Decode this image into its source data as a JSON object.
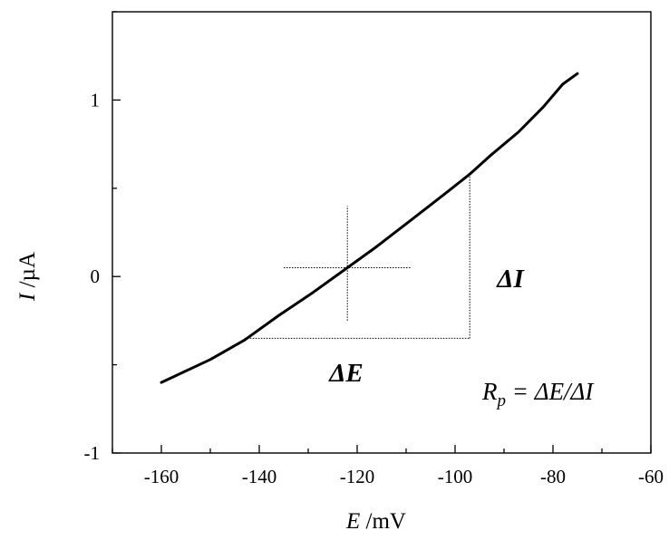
{
  "chart_data": {
    "type": "line",
    "xlabel": {
      "symbol": "E",
      "unit": " /mV"
    },
    "ylabel": {
      "symbol": "I",
      "unit": " /µA"
    },
    "xlim": [
      -170,
      -60
    ],
    "ylim": [
      -1,
      1.5
    ],
    "x_ticks": [
      -160,
      -140,
      -120,
      -100,
      -80,
      -60
    ],
    "y_ticks": [
      -1,
      0,
      1
    ],
    "grid": false,
    "series": [
      {
        "x": [
          -160,
          -150,
          -143,
          -136,
          -129,
          -122,
          -116,
          -109,
          -102,
          -97,
          -93,
          -87,
          -82,
          -78,
          -75
        ],
        "y": [
          -0.6,
          -0.47,
          -0.36,
          -0.22,
          -0.09,
          0.05,
          0.17,
          0.32,
          0.47,
          0.58,
          0.68,
          0.82,
          0.96,
          1.09,
          1.15
        ]
      }
    ],
    "crosshair": {
      "x": -122,
      "y": 0.05,
      "x_range": [
        -135,
        -109
      ],
      "y_range": [
        -0.25,
        0.4
      ]
    },
    "slope_triangle": {
      "x1": -143,
      "y1": -0.35,
      "x2": -97,
      "y2": 0.58
    },
    "annotations": {
      "delta_e": "ΔE",
      "delta_i": "ΔI",
      "formula": {
        "r": "R",
        "sub": "p",
        "rest": " = ΔE/ΔI"
      }
    }
  }
}
